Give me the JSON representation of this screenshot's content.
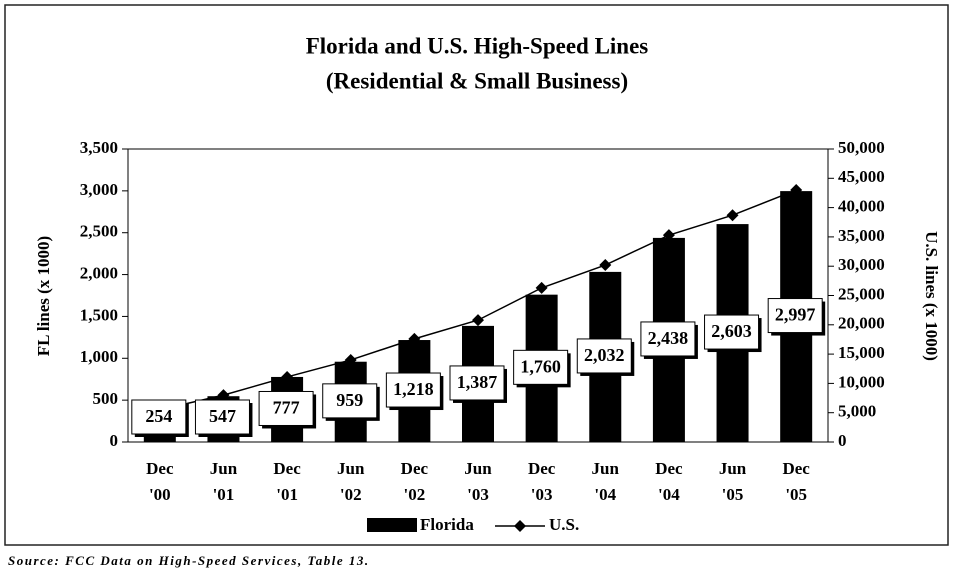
{
  "chart_data": {
    "type": "bar_line",
    "title": "Florida and U.S. High-Speed Lines",
    "subtitle": "(Residential & Small Business)",
    "y_label": "FL lines (x 1000)",
    "y2_label": "U.S. lines (x 1000)",
    "source": "Source: FCC Data on High-Speed Services, Table 13.",
    "categories": [
      "Dec '00",
      "Jun '01",
      "Dec '01",
      "Jun '02",
      "Dec '02",
      "Jun '03",
      "Dec '03",
      "Jun '04",
      "Dec '04",
      "Jun '05",
      "Dec '05"
    ],
    "series": [
      {
        "name": "Florida",
        "type": "bar",
        "color": "#000000",
        "values": [
          254,
          547,
          777,
          959,
          1218,
          1387,
          1760,
          2032,
          2438,
          2603,
          2997
        ],
        "value_labels": [
          "254",
          "547",
          "777",
          "959",
          "1,218",
          "1,387",
          "1,760",
          "2,032",
          "2,438",
          "2,603",
          "2,997"
        ]
      },
      {
        "name": "U.S.",
        "type": "line",
        "axis": "y2",
        "color": "#000000",
        "values": [
          5500,
          8000,
          11100,
          14000,
          17600,
          20800,
          26300,
          30200,
          35300,
          38700,
          43000
        ]
      }
    ],
    "ylim": [
      0,
      3500
    ],
    "yticks": [
      0,
      500,
      {
        "value": 1000,
        "label": "1,000"
      },
      {
        "value": 1500,
        "label": "1,500"
      },
      {
        "value": 2000,
        "label": "2,000"
      },
      {
        "value": 2500,
        "label": "2,500"
      },
      {
        "value": 3000,
        "label": "3,000"
      },
      {
        "value": 3500,
        "label": "3,500"
      }
    ],
    "y2lim": [
      0,
      50000
    ],
    "y2ticks": [
      0,
      {
        "value": 5000,
        "label": "5,000"
      },
      {
        "value": 10000,
        "label": "10,000"
      },
      {
        "value": 15000,
        "label": "15,000"
      },
      {
        "value": 20000,
        "label": "20,000"
      },
      {
        "value": 25000,
        "label": "25,000"
      },
      {
        "value": 30000,
        "label": "30,000"
      },
      {
        "value": 35000,
        "label": "35,000"
      },
      {
        "value": 40000,
        "label": "40,000"
      },
      {
        "value": 45000,
        "label": "45,000"
      },
      {
        "value": 50000,
        "label": "50,000"
      }
    ],
    "legend": "bottom"
  }
}
